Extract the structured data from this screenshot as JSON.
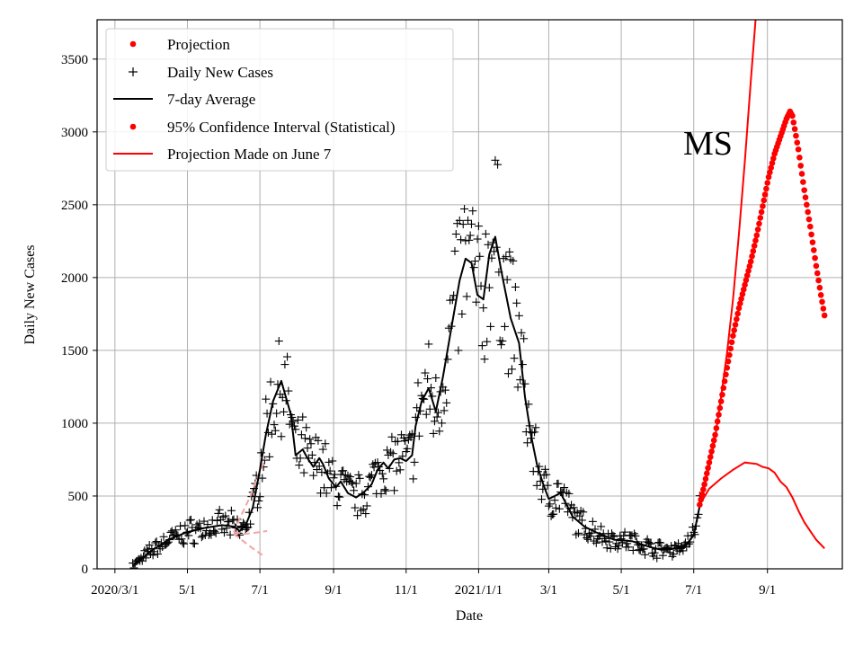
{
  "colors": {
    "accent": "#ff0000",
    "faded": "#f4a4a4",
    "ink": "#000000",
    "grid": "#b0b0b0"
  },
  "chart_data": {
    "type": "line",
    "title": "",
    "annotation": "MS",
    "xlabel": "Date",
    "ylabel": "Daily New Cases",
    "x_unit": "days since 2020/3/1",
    "xlim": [
      -15,
      612
    ],
    "ylim": [
      0,
      3770
    ],
    "grid": true,
    "legend_position": "top-left",
    "x_ticks": [
      {
        "day": 0,
        "label": "2020/3/1"
      },
      {
        "day": 61,
        "label": "5/1"
      },
      {
        "day": 122,
        "label": "7/1"
      },
      {
        "day": 184,
        "label": "9/1"
      },
      {
        "day": 245,
        "label": "11/1"
      },
      {
        "day": 306,
        "label": "2021/1/1"
      },
      {
        "day": 365,
        "label": "3/1"
      },
      {
        "day": 426,
        "label": "5/1"
      },
      {
        "day": 487,
        "label": "7/1"
      },
      {
        "day": 549,
        "label": "9/1"
      }
    ],
    "y_ticks": [
      0,
      500,
      1000,
      1500,
      2000,
      2500,
      3000,
      3500
    ],
    "legend": [
      {
        "label": "Projection",
        "marker": "dot",
        "color": "#ff0000"
      },
      {
        "label": "Daily New Cases",
        "marker": "plus",
        "color": "#000000"
      },
      {
        "label": "7-day Average",
        "marker": "line",
        "color": "#000000"
      },
      {
        "label": "95% Confidence Interval (Statistical)",
        "marker": "dot",
        "color": "#ff0000"
      },
      {
        "label": "Projection Made on June 7",
        "marker": "line",
        "color": "#ff0000"
      }
    ],
    "series": [
      {
        "name": "7-day Average",
        "style": "line",
        "color": "#000000",
        "x": [
          15,
          30,
          45,
          60,
          75,
          90,
          100,
          105,
          110,
          116,
          122,
          127,
          133,
          140,
          148,
          152,
          158,
          162,
          167,
          172,
          175,
          180,
          186,
          190,
          196,
          203,
          210,
          216,
          221,
          226,
          230,
          235,
          240,
          245,
          250,
          253,
          258,
          264,
          270,
          276,
          283,
          290,
          295,
          300,
          305,
          310,
          315,
          320,
          325,
          333,
          340,
          345,
          350,
          355,
          360,
          365,
          370,
          375,
          380,
          385,
          395,
          405,
          420,
          435,
          450,
          460,
          470,
          480,
          487,
          492
        ],
        "values": [
          20,
          120,
          200,
          250,
          280,
          300,
          290,
          260,
          300,
          420,
          680,
          920,
          1150,
          1290,
          1060,
          780,
          820,
          760,
          700,
          760,
          720,
          620,
          560,
          600,
          520,
          490,
          530,
          580,
          680,
          730,
          690,
          750,
          760,
          740,
          780,
          980,
          1150,
          1240,
          1080,
          1320,
          1650,
          1980,
          2130,
          2100,
          1880,
          1850,
          2160,
          2280,
          2050,
          1720,
          1550,
          1180,
          920,
          720,
          590,
          480,
          500,
          520,
          440,
          360,
          290,
          250,
          200,
          190,
          150,
          130,
          140,
          160,
          230,
          430
        ]
      },
      {
        "name": "Projection",
        "style": "dots",
        "color": "#ff0000",
        "x": [
          492,
          496,
          500,
          505,
          510,
          515,
          520,
          525,
          530,
          535,
          540,
          545,
          550,
          555,
          560,
          565,
          568,
          570,
          572,
          575,
          580,
          585,
          590,
          594,
          597
        ],
        "values": [
          440,
          580,
          730,
          920,
          1150,
          1380,
          1600,
          1790,
          1950,
          2110,
          2290,
          2490,
          2690,
          2850,
          2970,
          3090,
          3140,
          3110,
          3020,
          2880,
          2600,
          2350,
          2080,
          1880,
          1740
        ]
      },
      {
        "name": "Projection Made on June 7",
        "style": "line",
        "color": "#ff0000",
        "segments": [
          {
            "x": [
              492,
              500,
              510,
              520,
              530,
              540,
              545,
              550,
              555,
              560,
              565,
              570,
              575,
              580,
              585,
              590,
              597
            ],
            "values": [
              440,
              550,
              620,
              680,
              730,
              720,
              700,
              690,
              660,
              600,
              560,
              490,
              400,
              320,
              260,
              200,
              140
            ]
          },
          {
            "x": [
              492,
              500,
              505,
              510,
              515,
              520,
              525,
              530,
              535,
              539
            ],
            "values": [
              440,
              700,
              900,
              1180,
              1480,
              1850,
              2300,
              2800,
              3350,
              3770
            ]
          }
        ]
      },
      {
        "name": "Projection Made on June 7 (early, faded)",
        "style": "dashed",
        "color": "#f4a4a4",
        "segments": [
          {
            "x": [
              100,
              107,
              114,
              120,
              127
            ],
            "values": [
              250,
              380,
              500,
              630,
              760
            ]
          },
          {
            "x": [
              100,
              110,
              120,
              128
            ],
            "values": [
              250,
              240,
              250,
              260
            ]
          },
          {
            "x": [
              100,
              108,
              116,
              124
            ],
            "values": [
              240,
              190,
              140,
              95
            ]
          }
        ]
      }
    ],
    "daily_new_cases_generator": {
      "note": "Daily new case scatter ('+' markers) follows the 7-day average with day-to-day variation",
      "start_day": 15,
      "end_day": 492
    }
  }
}
